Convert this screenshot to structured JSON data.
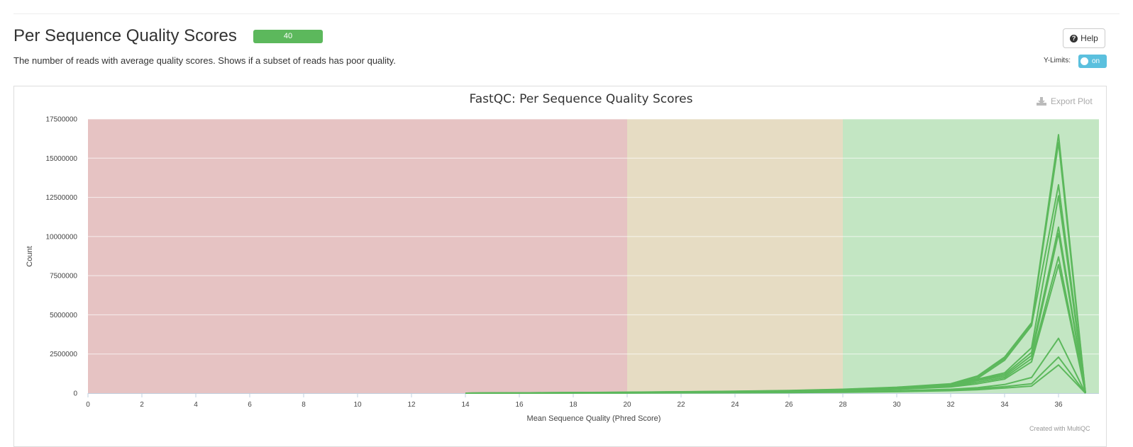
{
  "section": {
    "title": "Per Sequence Quality Scores",
    "badge": "40",
    "description": "The number of reads with average quality scores. Shows if a subset of reads has poor quality.",
    "help_label": "Help",
    "ylimits_label": "Y-Limits:",
    "ylimits_state": "on",
    "export_label": "Export Plot",
    "credit": "Created with MultiQC"
  },
  "colors": {
    "line": "#5cb85c",
    "zone_bad": "#e6c3c3",
    "zone_warn": "#e6dcc3",
    "zone_good": "#c3e6c3",
    "badge": "#5cb85c",
    "toggle": "#5bc0de"
  },
  "chart_data": {
    "type": "line",
    "title": "FastQC: Per Sequence Quality Scores",
    "xlabel": "Mean Sequence Quality (Phred Score)",
    "ylabel": "Count",
    "xlim": [
      0,
      37.5
    ],
    "ylim": [
      0,
      17500000
    ],
    "xticks": [
      0,
      2,
      4,
      6,
      8,
      10,
      12,
      14,
      16,
      18,
      20,
      22,
      24,
      26,
      28,
      30,
      32,
      34,
      36
    ],
    "yticks": [
      0,
      2500000,
      5000000,
      7500000,
      10000000,
      12500000,
      15000000,
      17500000
    ],
    "bands": [
      {
        "from": 0,
        "to": 20,
        "zone": "bad"
      },
      {
        "from": 20,
        "to": 28,
        "zone": "warn"
      },
      {
        "from": 28,
        "to": 37.5,
        "zone": "good"
      }
    ],
    "grid": true,
    "x": [
      14,
      16,
      18,
      20,
      22,
      24,
      26,
      28,
      30,
      32,
      33,
      34,
      35,
      36,
      37
    ],
    "series": [
      {
        "values": [
          0,
          20000,
          40000,
          60000,
          90000,
          120000,
          170000,
          250000,
          380000,
          600000,
          1100000,
          2300000,
          4500000,
          16500000,
          0
        ]
      },
      {
        "values": [
          0,
          18000,
          35000,
          55000,
          85000,
          115000,
          160000,
          240000,
          360000,
          580000,
          1050000,
          2200000,
          4400000,
          16000000,
          0
        ]
      },
      {
        "values": [
          0,
          15000,
          30000,
          50000,
          75000,
          100000,
          140000,
          210000,
          330000,
          550000,
          950000,
          2100000,
          4300000,
          13300000,
          0
        ]
      },
      {
        "values": [
          0,
          14000,
          28000,
          46000,
          70000,
          95000,
          130000,
          200000,
          310000,
          520000,
          900000,
          1300000,
          2900000,
          12600000,
          0
        ]
      },
      {
        "values": [
          0,
          12000,
          25000,
          42000,
          65000,
          90000,
          120000,
          190000,
          290000,
          500000,
          850000,
          1200000,
          2600000,
          10600000,
          0
        ]
      },
      {
        "values": [
          0,
          11000,
          22000,
          40000,
          60000,
          85000,
          115000,
          180000,
          280000,
          480000,
          800000,
          1100000,
          2400000,
          10200000,
          0
        ]
      },
      {
        "values": [
          0,
          10000,
          20000,
          36000,
          55000,
          78000,
          105000,
          165000,
          260000,
          440000,
          700000,
          1000000,
          2200000,
          8700000,
          0
        ]
      },
      {
        "values": [
          0,
          9000,
          18000,
          32000,
          50000,
          70000,
          95000,
          150000,
          240000,
          400000,
          600000,
          900000,
          2000000,
          8200000,
          0
        ]
      },
      {
        "values": [
          0,
          6000,
          12000,
          20000,
          32000,
          45000,
          62000,
          95000,
          150000,
          250000,
          350000,
          550000,
          1000000,
          3500000,
          0
        ]
      },
      {
        "values": [
          0,
          4000,
          9000,
          15000,
          24000,
          34000,
          48000,
          75000,
          120000,
          200000,
          280000,
          420000,
          600000,
          2300000,
          0
        ]
      },
      {
        "values": [
          0,
          3000,
          7000,
          12000,
          19000,
          27000,
          38000,
          60000,
          95000,
          160000,
          220000,
          330000,
          450000,
          1800000,
          0
        ]
      }
    ]
  }
}
